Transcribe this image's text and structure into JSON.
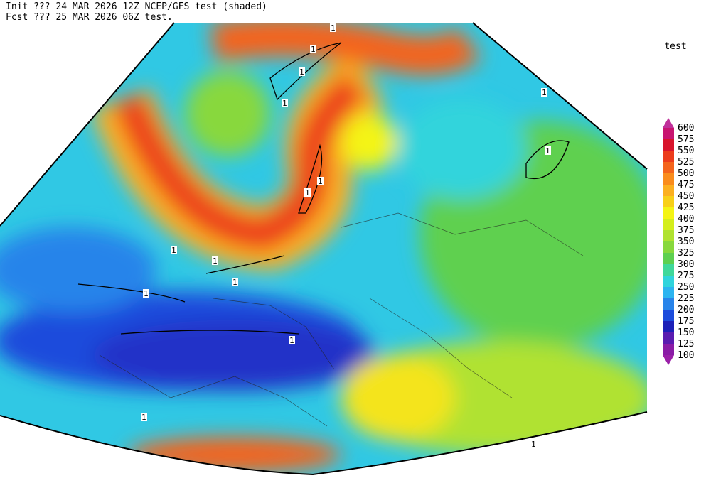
{
  "header": {
    "line1": "Init  ??? 24 MAR 2026 12Z  NCEP/GFS test (shaded)",
    "line2": "Fcst ??? 25 MAR 2026 06Z  test."
  },
  "legend": {
    "title": "test",
    "labels": [
      "600",
      "575",
      "550",
      "525",
      "500",
      "475",
      "450",
      "425",
      "400",
      "375",
      "350",
      "325",
      "300",
      "275",
      "250",
      "225",
      "200",
      "175",
      "150",
      "125",
      "100"
    ],
    "colors": [
      "#c0309a",
      "#c81470",
      "#d8142c",
      "#ec3c1c",
      "#f4641c",
      "#fa8c1c",
      "#fcb020",
      "#f8d018",
      "#f4f414",
      "#d4ee1c",
      "#b0e230",
      "#88d83c",
      "#5ed050",
      "#40d89a",
      "#30d4dc",
      "#2cb4f0",
      "#2884ea",
      "#1c4cdc",
      "#1c20b8",
      "#5a1cb0",
      "#8a1ca6",
      "#9a20a8"
    ]
  },
  "map": {
    "contour_labels": [
      "1",
      "1",
      "1",
      "1",
      "1",
      "1",
      "1",
      "1",
      "1",
      "1",
      "1",
      "1",
      "1",
      "1",
      "1"
    ]
  }
}
